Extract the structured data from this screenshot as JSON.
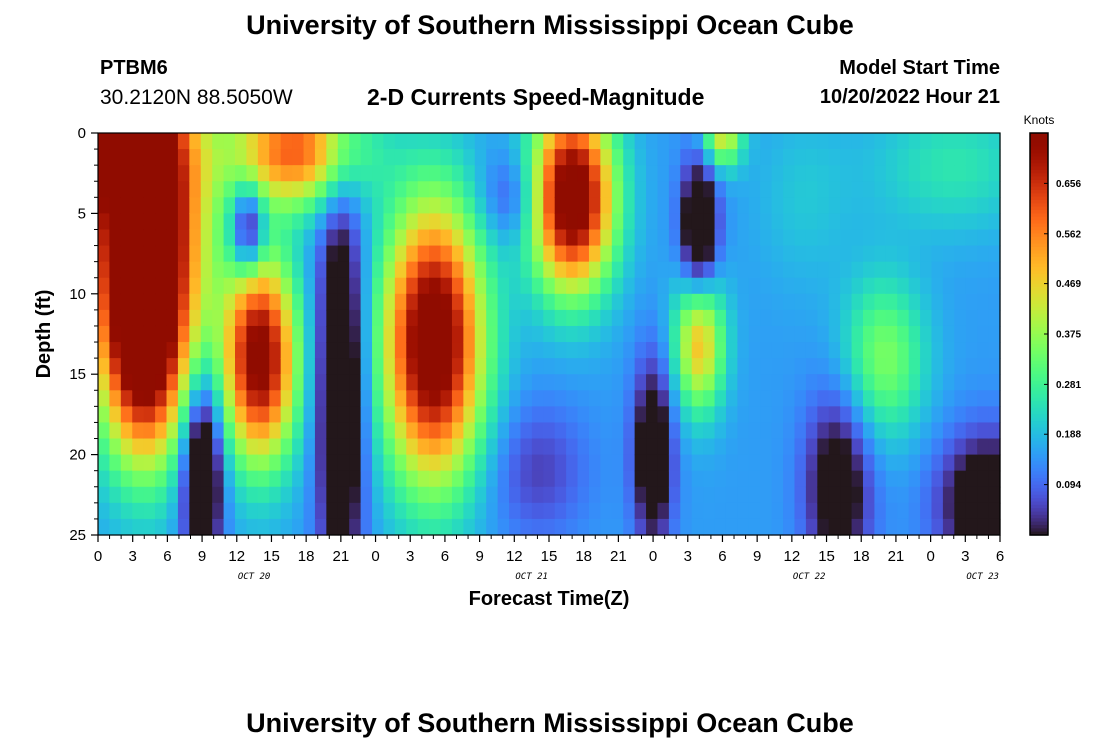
{
  "header": {
    "title": "University of Southern Mississippi Ocean Cube",
    "station": "PTBM6",
    "coords": "30.2120N  88.5050W",
    "subtitle": "2-D Currents Speed-Magnitude",
    "model_start_label": "Model Start Time",
    "model_start_value": "10/20/2022 Hour 21"
  },
  "footer": {
    "title": "University of Southern Mississippi Ocean Cube"
  },
  "chart_data": {
    "type": "heatmap",
    "title": "2-D Currents Speed-Magnitude",
    "xlabel": "Forecast Time(Z)",
    "ylabel": "Depth (ft)",
    "x_tick_labels": [
      "0",
      "3",
      "6",
      "9",
      "12",
      "15",
      "18",
      "21",
      "0",
      "3",
      "6",
      "9",
      "12",
      "15",
      "18",
      "21",
      "0",
      "3",
      "6",
      "9",
      "12",
      "15",
      "18",
      "21",
      "0",
      "3",
      "6"
    ],
    "day_labels": [
      {
        "label": "OCT 20",
        "tick_index": 4.5
      },
      {
        "label": "OCT 21",
        "tick_index": 12.5
      },
      {
        "label": "OCT 22",
        "tick_index": 20.5
      },
      {
        "label": "OCT 23",
        "tick_index": 25.5
      }
    ],
    "y_ticks": [
      0,
      5,
      10,
      15,
      20,
      25
    ],
    "ylim": [
      0,
      25
    ],
    "y_inverted": true,
    "colorbar": {
      "label": "Knots",
      "ticks": [
        "0.656",
        "0.562",
        "0.469",
        "0.375",
        "0.281",
        "0.188",
        "0.094"
      ],
      "tick_values": [
        0.656,
        0.562,
        0.469,
        0.375,
        0.281,
        0.188,
        0.094
      ],
      "range": [
        0,
        0.75
      ],
      "colormap": "turbo"
    },
    "grid_resolution": {
      "time_steps": 79,
      "depth_levels": 25
    },
    "field": [
      {
        "t": 4,
        "d": 5,
        "v": 0.75,
        "st": 3.5,
        "sd": 7
      },
      {
        "t": 4,
        "d": 14,
        "v": 0.45,
        "st": 2.5,
        "sd": 5
      },
      {
        "t": 2,
        "d": 0,
        "v": 0.35,
        "st": 3,
        "sd": 3
      },
      {
        "t": 9,
        "d": 21,
        "v": -0.35,
        "st": 1.2,
        "sd": 4
      },
      {
        "t": 13,
        "d": 6,
        "v": -0.28,
        "st": 1,
        "sd": 2
      },
      {
        "t": 14,
        "d": 14,
        "v": 0.62,
        "st": 2.2,
        "sd": 4.5
      },
      {
        "t": 17,
        "d": 1,
        "v": 0.45,
        "st": 4,
        "sd": 2.5
      },
      {
        "t": 21,
        "d": 16,
        "v": -0.3,
        "st": 1.4,
        "sd": 9
      },
      {
        "t": 29,
        "d": 13,
        "v": 0.68,
        "st": 3,
        "sd": 6
      },
      {
        "t": 36,
        "d": 4,
        "v": -0.12,
        "st": 2,
        "sd": 2
      },
      {
        "t": 38,
        "d": 21,
        "v": -0.1,
        "st": 3,
        "sd": 3
      },
      {
        "t": 41,
        "d": 4,
        "v": 0.68,
        "st": 2.5,
        "sd": 4
      },
      {
        "t": 48,
        "d": 20,
        "v": -0.25,
        "st": 1.2,
        "sd": 4
      },
      {
        "t": 52,
        "d": 6,
        "v": -0.3,
        "st": 1.1,
        "sd": 3
      },
      {
        "t": 52,
        "d": 13,
        "v": 0.35,
        "st": 1.5,
        "sd": 3
      },
      {
        "t": 54,
        "d": 0,
        "v": 0.3,
        "st": 1.2,
        "sd": 1.5
      },
      {
        "t": 61,
        "d": 4,
        "v": 0.05,
        "st": 3,
        "sd": 4
      },
      {
        "t": 64,
        "d": 22,
        "v": -0.22,
        "st": 2,
        "sd": 4
      },
      {
        "t": 68,
        "d": 14,
        "v": 0.2,
        "st": 2.5,
        "sd": 3.5
      },
      {
        "t": 74,
        "d": 2,
        "v": 0.1,
        "st": 5,
        "sd": 3
      },
      {
        "t": 77,
        "d": 23,
        "v": -0.25,
        "st": 3,
        "sd": 3
      }
    ],
    "field_base": 0.15
  }
}
